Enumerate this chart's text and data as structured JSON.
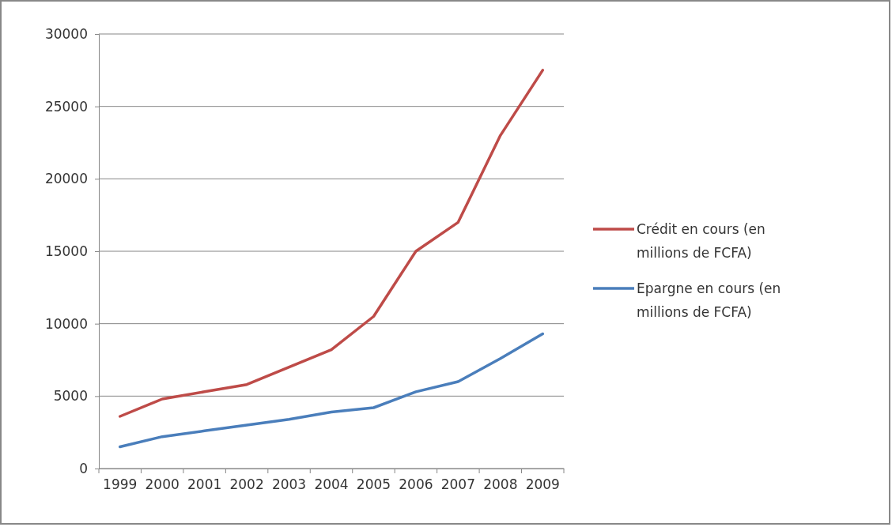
{
  "chart_data": {
    "type": "line",
    "categories": [
      "1999",
      "2000",
      "2001",
      "2002",
      "2003",
      "2004",
      "2005",
      "2006",
      "2007",
      "2008",
      "2009"
    ],
    "series": [
      {
        "name": "Crédit en cours (en millions de FCFA)",
        "color": "#be4b48",
        "values": [
          3600,
          4800,
          5300,
          5800,
          7000,
          8200,
          10500,
          15000,
          17000,
          23000,
          27500
        ]
      },
      {
        "name": "Epargne en cours (en millions de FCFA)",
        "color": "#4a7ebb",
        "values": [
          1500,
          2200,
          2600,
          3000,
          3400,
          3900,
          4200,
          5300,
          6000,
          7600,
          9300
        ]
      }
    ],
    "ylim": [
      0,
      30000
    ],
    "yticks": [
      0,
      5000,
      10000,
      15000,
      20000,
      25000,
      30000
    ],
    "grid": "y",
    "legend": "right",
    "marker": "none",
    "line_style": "solid"
  }
}
